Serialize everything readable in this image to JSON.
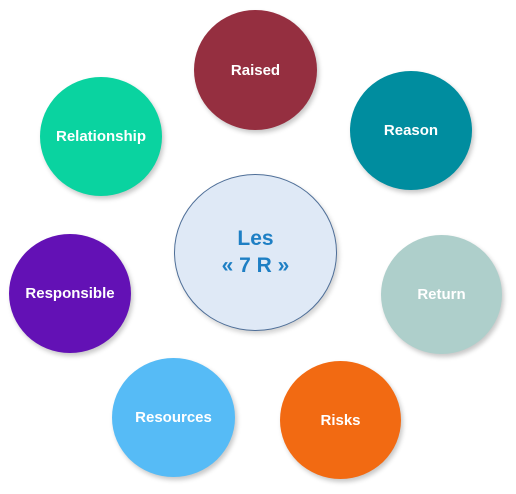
{
  "center": {
    "line1": "Les",
    "line2": "« 7 R »",
    "fill": "#dfe9f6",
    "border": "#4f6f98",
    "text_color": "#1e7fc4"
  },
  "nodes": [
    {
      "label": "Raised",
      "color": "#952f40"
    },
    {
      "label": "Reason",
      "color": "#008d9f"
    },
    {
      "label": "Return",
      "color": "#aecfcb"
    },
    {
      "label": "Risks",
      "color": "#f26a12"
    },
    {
      "label": "Resources",
      "color": "#56bbf6"
    },
    {
      "label": "Responsible",
      "color": "#6311b5"
    },
    {
      "label": "Relationship",
      "color": "#0ad3a0"
    }
  ]
}
